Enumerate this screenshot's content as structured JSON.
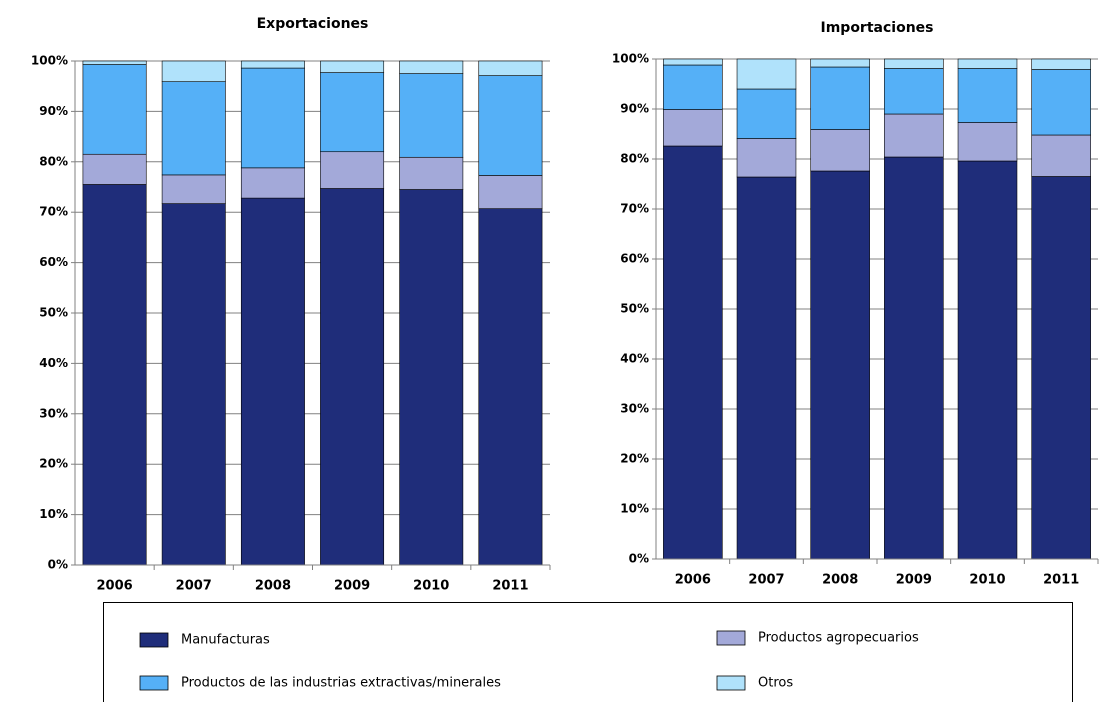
{
  "chart_data": [
    {
      "type": "stacked-bar",
      "title": "Exportaciones",
      "categories": [
        "2006",
        "2007",
        "2008",
        "2009",
        "2010",
        "2011"
      ],
      "series": [
        {
          "name": "Manufacturas",
          "color": "#1f2d7a",
          "values": [
            75.5,
            71.7,
            72.8,
            74.7,
            74.5,
            70.7
          ]
        },
        {
          "name": "Productos agropecuarios",
          "color": "#a3a9d9",
          "values": [
            6,
            5.7,
            6,
            7.3,
            6.4,
            6.6
          ]
        },
        {
          "name": "Productos de las industrias extractivas/minerales",
          "color": "#55b0f7",
          "values": [
            17.8,
            18.5,
            19.8,
            15.7,
            16.6,
            19.8
          ]
        },
        {
          "name": "Otros",
          "color": "#b0e2fb",
          "values": [
            0.7,
            4.1,
            1.4,
            2.3,
            2.5,
            2.9
          ]
        }
      ],
      "ylim": [
        0,
        100
      ],
      "yticks": [
        {
          "value": 0,
          "label": "0%"
        },
        {
          "value": 10,
          "label": "10%"
        },
        {
          "value": 20,
          "label": "20%"
        },
        {
          "value": 30,
          "label": "30%"
        },
        {
          "value": 40,
          "label": "40%"
        },
        {
          "value": 50,
          "label": "50%"
        },
        {
          "value": 60,
          "label": "60%"
        },
        {
          "value": 70,
          "label": "70%"
        },
        {
          "value": 80,
          "label": "80%"
        },
        {
          "value": 90,
          "label": "90%"
        },
        {
          "value": 100,
          "label": "100%"
        }
      ],
      "grid": true
    },
    {
      "type": "stacked-bar",
      "title": "Importaciones",
      "categories": [
        "2006",
        "2007",
        "2008",
        "2009",
        "2010",
        "2011"
      ],
      "series": [
        {
          "name": "Manufacturas",
          "color": "#1f2d7a",
          "values": [
            82.6,
            76.4,
            77.6,
            80.4,
            79.6,
            76.5
          ]
        },
        {
          "name": "Productos agropecuarios",
          "color": "#a3a9d9",
          "values": [
            7.3,
            7.7,
            8.3,
            8.6,
            7.7,
            8.3
          ]
        },
        {
          "name": "Productos de las industrias extractivas/minerales",
          "color": "#55b0f7",
          "values": [
            8.9,
            9.9,
            12.5,
            9.1,
            10.8,
            13.1
          ]
        },
        {
          "name": "Otros",
          "color": "#b0e2fb",
          "values": [
            1.2,
            6,
            1.6,
            1.9,
            1.9,
            2.1
          ]
        }
      ],
      "ylim": [
        0,
        100
      ],
      "yticks": [
        {
          "value": 0,
          "label": "0%"
        },
        {
          "value": 10,
          "label": "10%"
        },
        {
          "value": 20,
          "label": "20%"
        },
        {
          "value": 30,
          "label": "30%"
        },
        {
          "value": 40,
          "label": "40%"
        },
        {
          "value": 50,
          "label": "50%"
        },
        {
          "value": 60,
          "label": "60%"
        },
        {
          "value": 70,
          "label": "70%"
        },
        {
          "value": 80,
          "label": "80%"
        },
        {
          "value": 90,
          "label": "90%"
        },
        {
          "value": 100,
          "label": "100%"
        }
      ],
      "grid": true
    }
  ]
}
